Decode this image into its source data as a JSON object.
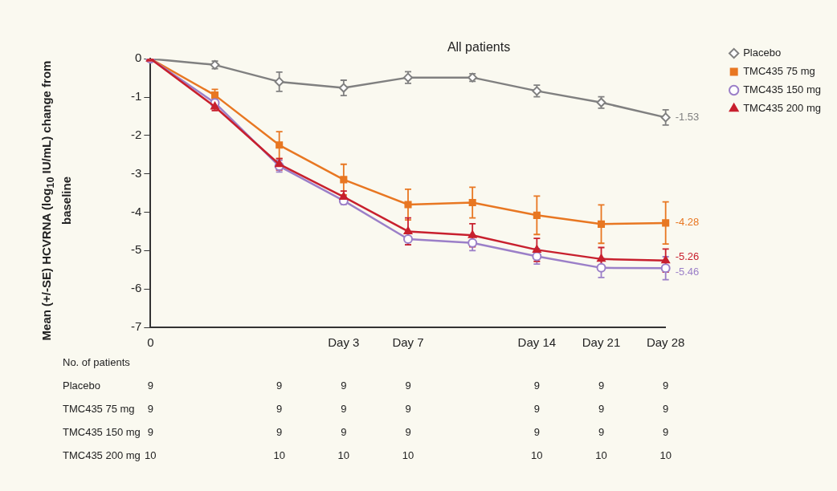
{
  "chart_data": {
    "type": "line",
    "title": "All patients",
    "ylabel": "Mean (+/-SE) HCVRNA (log$_{10}$ IU/mL) change from baseline",
    "categories": [
      "0",
      null,
      null,
      "Day 3",
      "Day 7",
      null,
      "Day 14",
      "Day 21",
      "Day 28"
    ],
    "ylim": [
      -7,
      0
    ],
    "yticks": [
      -7,
      -6,
      -5,
      -4,
      -3,
      -2,
      -1,
      0
    ],
    "grid": false,
    "legend": "top right",
    "line_style": "solid",
    "series": [
      {
        "name": "Placebo",
        "color": "#808080",
        "marker": "diamond",
        "values": [
          0,
          -0.16,
          -0.6,
          -0.76,
          -0.49,
          -0.49,
          -0.84,
          -1.14,
          -1.53
        ],
        "errors": [
          null,
          0.1,
          0.25,
          0.2,
          0.15,
          0.1,
          0.15,
          0.15,
          0.2
        ],
        "value_labels": [
          null,
          null,
          null,
          null,
          null,
          null,
          null,
          null,
          "-1.53"
        ]
      },
      {
        "name": "TMC435 75 mg",
        "color": "#e87722",
        "marker": "square",
        "values": [
          0,
          -0.95,
          -2.25,
          -3.15,
          -3.8,
          -3.75,
          -4.08,
          -4.31,
          -4.28
        ],
        "errors": [
          null,
          0.15,
          0.35,
          0.4,
          0.4,
          0.4,
          0.5,
          0.5,
          0.55
        ],
        "value_labels": [
          null,
          null,
          null,
          null,
          null,
          null,
          null,
          null,
          "-4.28"
        ]
      },
      {
        "name": "TMC435 150 mg",
        "color": "#9b7fc8",
        "marker": "circle",
        "values": [
          0,
          -1.15,
          -2.8,
          -3.7,
          -4.7,
          -4.8,
          -5.15,
          -5.45,
          -5.46
        ],
        "errors": [
          null,
          0.1,
          0.15,
          0.1,
          0.15,
          0.2,
          0.2,
          0.25,
          0.3
        ],
        "value_labels": [
          null,
          null,
          null,
          null,
          null,
          null,
          null,
          null,
          "-5.46"
        ]
      },
      {
        "name": "TMC435 200 mg",
        "color": "#c8202e",
        "marker": "triangle",
        "values": [
          0,
          -1.25,
          -2.75,
          -3.6,
          -4.5,
          -4.6,
          -4.98,
          -5.22,
          -5.26
        ],
        "errors": [
          null,
          0.1,
          0.15,
          0.15,
          0.35,
          0.3,
          0.3,
          0.3,
          0.3
        ],
        "value_labels": [
          null,
          null,
          null,
          null,
          null,
          null,
          null,
          null,
          "-5.26"
        ]
      }
    ],
    "annotations": [
      "No. of patients",
      "Placebo\t9\t\t9\t9\t9\t\t9\t9\t9",
      "TMC435 75 mg\t9\t\t9\t9\t9\t\t9\t9\t9",
      "TMC435 150 mg\t9\t\t9\t9\t9\t\t9\t9\t9",
      "TMC435 200 mg\t10\t\t10\t10\t10\t\t10\t10\t10"
    ]
  }
}
